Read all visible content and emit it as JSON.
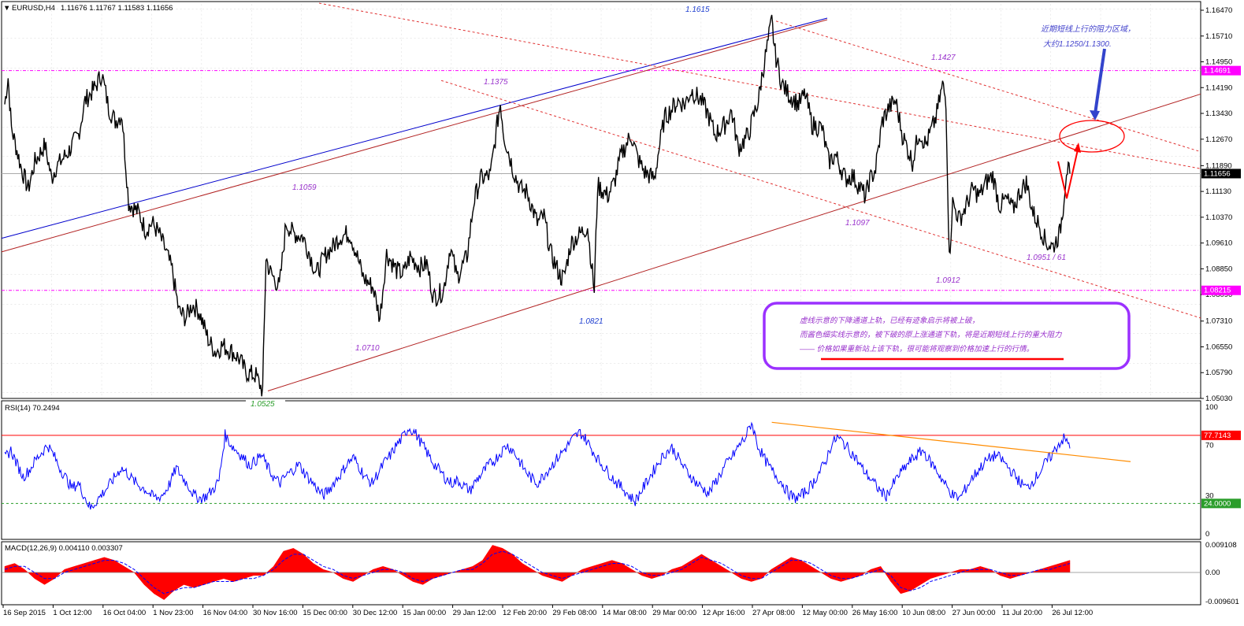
{
  "header": {
    "symbol": "EURUSD,H4",
    "ohlc": "1.11676 1.11767 1.11583 1.11656"
  },
  "colors": {
    "candle": "#000000",
    "blue_trendline": "#0000cc",
    "brown_trendline": "#b22222",
    "red_dashed_channel": "#e03030",
    "magenta_levels": "#ff00ff",
    "rsi_line": "#0000ff",
    "rsi_trendline": "#ff8c00",
    "macd_histogram": "#ff0000",
    "macd_signal": "#0000ff",
    "annotation_text": "#9932cc",
    "annotation_box": "#9b30ff",
    "arrow_blue": "#3344cc",
    "arrow_red": "#ff0000"
  },
  "chart_data": [
    {
      "type": "candlestick",
      "title": "EURUSD,H4",
      "price_axis_ticks": [
        "1.16470",
        "1.15710",
        "1.14950",
        "1.14190",
        "1.13430",
        "1.12670",
        "1.11890",
        "1.11130",
        "1.10370",
        "1.09610",
        "1.08850",
        "1.08090",
        "1.07310",
        "1.06550",
        "1.05790",
        "1.05030"
      ],
      "current_price_label": "1.11656",
      "horizontal_levels": [
        {
          "label": "1.14691",
          "value": 1.14691,
          "style": "dash-dot",
          "color": "magenta"
        },
        {
          "label": "1.08215",
          "value": 1.08215,
          "style": "dash-dot",
          "color": "magenta"
        },
        {
          "label": "1.11656",
          "value": 1.11656,
          "style": "solid",
          "color": "gray"
        }
      ],
      "price_annotations": [
        {
          "text": "1.1615",
          "color": "blue"
        },
        {
          "text": "1.1427",
          "color": "purple"
        },
        {
          "text": "1.1375",
          "color": "purple"
        },
        {
          "text": "1.1059",
          "color": "purple"
        },
        {
          "text": "1.1097",
          "color": "purple"
        },
        {
          "text": "1.0951 / 61",
          "color": "purple"
        },
        {
          "text": "1.0912",
          "color": "purple"
        },
        {
          "text": "1.0821",
          "color": "blue"
        },
        {
          "text": "1.0710",
          "color": "purple"
        },
        {
          "text": "1.0525",
          "color": "green"
        }
      ],
      "x_tick_labels": [
        "16 Sep 2015",
        "1 Oct 12:00",
        "16 Oct 04:00",
        "1 Nov 23:00",
        "16 Nov 04:00",
        "30 Nov 16:00",
        "15 Dec 00:00",
        "30 Dec 12:00",
        "15 Jan 00:00",
        "29 Jan 12:00",
        "12 Feb 20:00",
        "29 Feb 08:00",
        "14 Mar 08:00",
        "29 Mar 00:00",
        "12 Apr 16:00",
        "27 Apr 08:00",
        "12 May 00:00",
        "26 May 16:00",
        "10 Jun 08:00",
        "27 Jun 00:00",
        "11 Jul 20:00",
        "26 Jul 12:00"
      ],
      "close_path": [
        [
          "16 Sep 2015",
          1.137
        ],
        [
          "17 Sep 2015",
          1.145
        ],
        [
          "18 Sep 2015",
          1.13
        ],
        [
          "21 Sep 2015",
          1.118
        ],
        [
          "23 Sep 2015",
          1.112
        ],
        [
          "25 Sep 2015",
          1.12
        ],
        [
          "28 Sep 2015",
          1.125
        ],
        [
          "30 Sep 2015",
          1.115
        ],
        [
          "1 Oct 2015",
          1.118
        ],
        [
          "5 Oct 2015",
          1.123
        ],
        [
          "8 Oct 2015",
          1.128
        ],
        [
          "10 Oct 2015",
          1.138
        ],
        [
          "13 Oct 2015",
          1.142
        ],
        [
          "15 Oct 2015",
          1.146
        ],
        [
          "17 Oct 2015",
          1.136
        ],
        [
          "19 Oct 2015",
          1.132
        ],
        [
          "21 Oct 2015",
          1.134
        ],
        [
          "23 Oct 2015",
          1.108
        ],
        [
          "26 Oct 2015",
          1.105
        ],
        [
          "28 Oct 2015",
          1.1
        ],
        [
          "30 Oct 2015",
          1.102
        ],
        [
          "1 Nov 2015",
          1.099
        ],
        [
          "3 Nov 2015",
          1.094
        ],
        [
          "5 Nov 2015",
          1.088
        ],
        [
          "7 Nov 2015",
          1.076
        ],
        [
          "9 Nov 2015",
          1.074
        ],
        [
          "11 Nov 2015",
          1.078
        ],
        [
          "13 Nov 2015",
          1.076
        ],
        [
          "16 Nov 2015",
          1.067
        ],
        [
          "18 Nov 2015",
          1.064
        ],
        [
          "20 Nov 2015",
          1.066
        ],
        [
          "23 Nov 2015",
          1.064
        ],
        [
          "25 Nov 2015",
          1.062
        ],
        [
          "27 Nov 2015",
          1.058
        ],
        [
          "30 Nov 2015",
          1.057
        ],
        [
          "2 Dec 2015",
          1.0525
        ],
        [
          "3 Dec 2015",
          1.092
        ],
        [
          "4 Dec 2015",
          1.088
        ],
        [
          "7 Dec 2015",
          1.083
        ],
        [
          "9 Dec 2015",
          1.102
        ],
        [
          "11 Dec 2015",
          1.099
        ],
        [
          "14 Dec 2015",
          1.098
        ],
        [
          "16 Dec 2015",
          1.093
        ],
        [
          "18 Dec 2015",
          1.087
        ],
        [
          "21 Dec 2015",
          1.093
        ],
        [
          "23 Dec 2015",
          1.095
        ],
        [
          "25 Dec 2015",
          1.098
        ],
        [
          "28 Dec 2015",
          1.099
        ],
        [
          "30 Dec 2015",
          1.093
        ],
        [
          "1 Jan 2016",
          1.086
        ],
        [
          "4 Jan 2016",
          1.083
        ],
        [
          "6 Jan 2016",
          1.074
        ],
        [
          "8 Jan 2016",
          1.093
        ],
        [
          "11 Jan 2016",
          1.088
        ],
        [
          "13 Jan 2016",
          1.087
        ],
        [
          "15 Jan 2016",
          1.092
        ],
        [
          "18 Jan 2016",
          1.089
        ],
        [
          "20 Jan 2016",
          1.09
        ],
        [
          "22 Jan 2016",
          1.08
        ],
        [
          "25 Jan 2016",
          1.082
        ],
        [
          "27 Jan 2016",
          1.095
        ],
        [
          "29 Jan 2016",
          1.086
        ],
        [
          "1 Feb 2016",
          1.092
        ],
        [
          "3 Feb 2016",
          1.108
        ],
        [
          "5 Feb 2016",
          1.115
        ],
        [
          "8 Feb 2016",
          1.116
        ],
        [
          "10 Feb 2016",
          1.131
        ],
        [
          "11 Feb 2016",
          1.1375
        ],
        [
          "12 Feb 2016",
          1.128
        ],
        [
          "15 Feb 2016",
          1.117
        ],
        [
          "17 Feb 2016",
          1.112
        ],
        [
          "19 Feb 2016",
          1.111
        ],
        [
          "22 Feb 2016",
          1.102
        ],
        [
          "24 Feb 2016",
          1.104
        ],
        [
          "26 Feb 2016",
          1.093
        ],
        [
          "29 Feb 2016",
          1.086
        ],
        [
          "1 Mar 2016",
          1.086
        ],
        [
          "3 Mar 2016",
          1.096
        ],
        [
          "5 Mar 2016",
          1.098
        ],
        [
          "8 Mar 2016",
          1.101
        ],
        [
          "10 Mar 2016",
          1.082
        ],
        [
          "11 Mar 2016",
          1.113
        ],
        [
          "14 Mar 2016",
          1.11
        ],
        [
          "16 Mar 2016",
          1.114
        ],
        [
          "18 Mar 2016",
          1.122
        ],
        [
          "21 Mar 2016",
          1.128
        ],
        [
          "23 Mar 2016",
          1.121
        ],
        [
          "25 Mar 2016",
          1.117
        ],
        [
          "28 Mar 2016",
          1.115
        ],
        [
          "29 Mar 2016",
          1.122
        ],
        [
          "31 Mar 2016",
          1.133
        ],
        [
          "4 Apr 2016",
          1.138
        ],
        [
          "6 Apr 2016",
          1.137
        ],
        [
          "8 Apr 2016",
          1.141
        ],
        [
          "11 Apr 2016",
          1.138
        ],
        [
          "13 Apr 2016",
          1.134
        ],
        [
          "15 Apr 2016",
          1.128
        ],
        [
          "18 Apr 2016",
          1.131
        ],
        [
          "20 Apr 2016",
          1.135
        ],
        [
          "22 Apr 2016",
          1.124
        ],
        [
          "25 Apr 2016",
          1.128
        ],
        [
          "27 Apr 2016",
          1.135
        ],
        [
          "28 Apr 2016",
          1.138
        ],
        [
          "29 Apr 2016",
          1.145
        ],
        [
          "2 May 2016",
          1.1615
        ],
        [
          "3 May 2016",
          1.152
        ],
        [
          "5 May 2016",
          1.143
        ],
        [
          "7 May 2016",
          1.14
        ],
        [
          "10 May 2016",
          1.137
        ],
        [
          "12 May 2016",
          1.14
        ],
        [
          "14 May 2016",
          1.131
        ],
        [
          "17 May 2016",
          1.13
        ],
        [
          "19 May 2016",
          1.12
        ],
        [
          "21 May 2016",
          1.122
        ],
        [
          "24 May 2016",
          1.115
        ],
        [
          "26 May 2016",
          1.116
        ],
        [
          "28 May 2016",
          1.113
        ],
        [
          "30 May 2016",
          1.1097
        ],
        [
          "31 May 2016",
          1.114
        ],
        [
          "2 Jun 2016",
          1.118
        ],
        [
          "4 Jun 2016",
          1.132
        ],
        [
          "6 Jun 2016",
          1.136
        ],
        [
          "8 Jun 2016",
          1.138
        ],
        [
          "10 Jun 2016",
          1.128
        ],
        [
          "13 Jun 2016",
          1.12
        ],
        [
          "15 Jun 2016",
          1.129
        ],
        [
          "17 Jun 2016",
          1.125
        ],
        [
          "20 Jun 2016",
          1.133
        ],
        [
          "22 Jun 2016",
          1.1427
        ],
        [
          "23 Jun 2016",
          1.138
        ],
        [
          "24 Jun 2016",
          1.0912
        ],
        [
          "25 Jun 2016",
          1.108
        ],
        [
          "27 Jun 2016",
          1.103
        ],
        [
          "29 Jun 2016",
          1.107
        ],
        [
          "1 Jul 2016",
          1.112
        ],
        [
          "3 Jul 2016",
          1.11
        ],
        [
          "5 Jul 2016",
          1.114
        ],
        [
          "7 Jul 2016",
          1.116
        ],
        [
          "9 Jul 2016",
          1.107
        ],
        [
          "11 Jul 2016",
          1.109
        ],
        [
          "13 Jul 2016",
          1.106
        ],
        [
          "15 Jul 2016",
          1.111
        ],
        [
          "17 Jul 2016",
          1.114
        ],
        [
          "19 Jul 2016",
          1.105
        ],
        [
          "21 Jul 2016",
          1.101
        ],
        [
          "23 Jul 2016",
          1.096
        ],
        [
          "25 Jul 2016",
          1.0951
        ],
        [
          "27 Jul 2016",
          1.099
        ],
        [
          "28 Jul 2016",
          1.107
        ],
        [
          "29 Jul 2016",
          1.118
        ],
        [
          "30 Jul 2016",
          1.11656
        ]
      ]
    },
    {
      "type": "line",
      "title": "RSI(14) 70.2494",
      "y_ticks": [
        "100",
        "70",
        "30",
        "0"
      ],
      "levels": [
        {
          "label": "77.7143",
          "value": 77.7143,
          "color": "red"
        },
        {
          "label": "24.0000",
          "value": 24.0,
          "color": "green"
        }
      ],
      "values": [
        60,
        66,
        55,
        45,
        50,
        58,
        64,
        70,
        62,
        52,
        44,
        36,
        40,
        30,
        20,
        26,
        32,
        38,
        45,
        52,
        48,
        42,
        38,
        35,
        30,
        28,
        32,
        40,
        52,
        45,
        38,
        30,
        28,
        30,
        35,
        42,
        78,
        70,
        65,
        60,
        54,
        58,
        62,
        52,
        44,
        40,
        46,
        50,
        55,
        48,
        42,
        36,
        30,
        35,
        42,
        48,
        56,
        60,
        52,
        44,
        40,
        48,
        56,
        62,
        70,
        76,
        84,
        80,
        72,
        64,
        56,
        50,
        44,
        40,
        42,
        38,
        34,
        42,
        48,
        54,
        58,
        64,
        70,
        66,
        58,
        50,
        44,
        40,
        46,
        52,
        58,
        64,
        70,
        76,
        80,
        74,
        66,
        58,
        52,
        46,
        40,
        36,
        30,
        26,
        34,
        42,
        50,
        58,
        64,
        68,
        60,
        52,
        46,
        40,
        36,
        32,
        40,
        48,
        56,
        62,
        70,
        76,
        88,
        70,
        60,
        52,
        46,
        40,
        32,
        28,
        30,
        34,
        40,
        48,
        56,
        70,
        76,
        72,
        66,
        60,
        52,
        46,
        40,
        34,
        30,
        38,
        46,
        52,
        58,
        62,
        66,
        58,
        52,
        44,
        36,
        30,
        28,
        36,
        44,
        50,
        56,
        60,
        62,
        58,
        52,
        46,
        40,
        36,
        42,
        48,
        56,
        62,
        70,
        75,
        70.25
      ],
      "trendline": {
        "from": [
          88,
          "2 May 2016"
        ],
        "to": [
          60,
          "30 Jul 2016"
        ]
      }
    },
    {
      "type": "bar",
      "title": "MACD(12,26,9) 0.004110 0.003307",
      "y_ticks": [
        "0.009108",
        "0.00",
        "-0.009601"
      ],
      "histogram": [
        0.002,
        0.003,
        0.001,
        -0.002,
        -0.004,
        -0.002,
        0.001,
        0.002,
        0.003,
        0.004,
        0.005,
        0.004,
        0.002,
        0.0,
        -0.004,
        -0.007,
        -0.009,
        -0.006,
        -0.004,
        -0.005,
        -0.004,
        -0.003,
        -0.002,
        -0.003,
        -0.002,
        -0.001,
        -0.001,
        0.002,
        0.007,
        0.008,
        0.006,
        0.003,
        0.001,
        0.0,
        -0.002,
        -0.003,
        -0.001,
        0.001,
        0.002,
        0.001,
        -0.001,
        -0.003,
        -0.004,
        -0.002,
        -0.001,
        0.0,
        0.001,
        0.002,
        0.004,
        0.009,
        0.008,
        0.006,
        0.003,
        0.001,
        -0.001,
        -0.002,
        -0.003,
        -0.001,
        0.001,
        0.002,
        0.003,
        0.004,
        0.003,
        0.001,
        -0.001,
        -0.002,
        -0.001,
        0.001,
        0.002,
        0.004,
        0.006,
        0.004,
        0.002,
        0.0,
        -0.002,
        -0.003,
        -0.002,
        0.001,
        0.003,
        0.005,
        0.004,
        0.002,
        0.0,
        -0.002,
        -0.003,
        -0.002,
        -0.001,
        0.001,
        0.002,
        -0.003,
        -0.007,
        -0.006,
        -0.004,
        -0.002,
        -0.001,
        0.0,
        0.001,
        0.001,
        0.002,
        0.001,
        -0.001,
        -0.002,
        -0.001,
        0.0,
        0.001,
        0.002,
        0.003,
        0.004
      ],
      "signal": [
        0.001,
        0.002,
        0.002,
        0.0,
        -0.002,
        -0.002,
        0.0,
        0.001,
        0.002,
        0.003,
        0.004,
        0.004,
        0.003,
        0.001,
        -0.002,
        -0.005,
        -0.007,
        -0.006,
        -0.005,
        -0.005,
        -0.004,
        -0.003,
        -0.003,
        -0.003,
        -0.002,
        -0.002,
        -0.001,
        0.001,
        0.004,
        0.006,
        0.006,
        0.004,
        0.002,
        0.001,
        -0.001,
        -0.002,
        -0.001,
        0.0,
        0.001,
        0.001,
        0.0,
        -0.002,
        -0.003,
        -0.002,
        -0.001,
        0.0,
        0.001,
        0.001,
        0.003,
        0.006,
        0.007,
        0.006,
        0.004,
        0.002,
        0.0,
        -0.001,
        -0.002,
        -0.001,
        0.0,
        0.001,
        0.002,
        0.003,
        0.003,
        0.002,
        0.0,
        -0.001,
        -0.001,
        0.0,
        0.001,
        0.003,
        0.005,
        0.004,
        0.003,
        0.001,
        -0.001,
        -0.002,
        -0.002,
        0.0,
        0.002,
        0.004,
        0.004,
        0.003,
        0.001,
        -0.001,
        -0.002,
        -0.002,
        -0.001,
        0.0,
        0.001,
        -0.001,
        -0.005,
        -0.006,
        -0.005,
        -0.003,
        -0.002,
        -0.001,
        0.0,
        0.001,
        0.001,
        0.001,
        0.0,
        -0.001,
        -0.001,
        0.0,
        0.001,
        0.001,
        0.002,
        0.003
      ]
    }
  ],
  "annotations": {
    "resistance_zone_note": [
      "近期短线上行的阻力区域，",
      "大约1.1250/1.1300."
    ],
    "box_note": [
      "虚线示意的下降通道上轨，已经有迹象启示将被上破，",
      "而酱色细实线示意的，被下破的原上涨通道下轨，将是近期短线上行的重大阻力",
      "—— 价格如果重新站上该下轨，很可能将观察到价格加速上行的行情。"
    ]
  }
}
